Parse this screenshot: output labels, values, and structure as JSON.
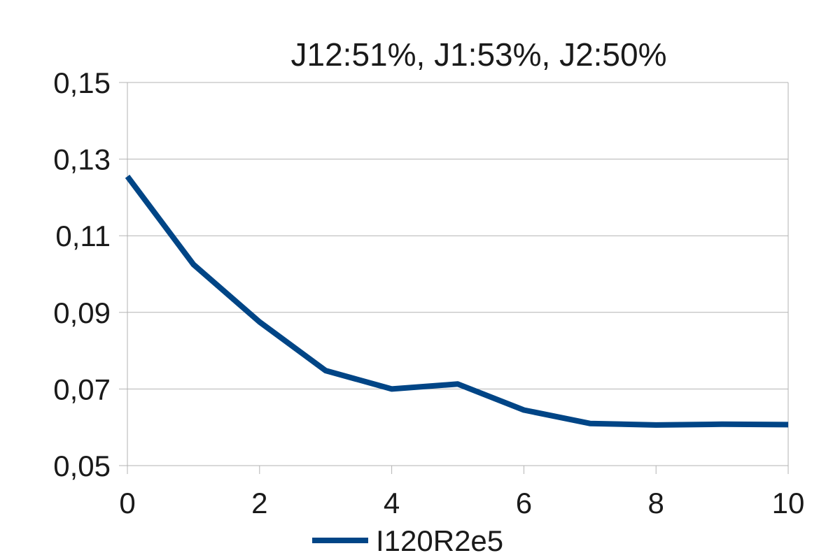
{
  "chart_data": {
    "type": "line",
    "title": "J12:51%, J1:53%, J2:50%",
    "xlabel": "",
    "ylabel": "",
    "x": [
      0,
      1,
      2,
      3,
      4,
      5,
      6,
      7,
      8,
      9,
      10
    ],
    "xlim": [
      0,
      10
    ],
    "ylim": [
      0.05,
      0.15
    ],
    "x_ticks": [
      "0",
      "2",
      "4",
      "6",
      "8",
      "10"
    ],
    "y_ticks": [
      "0,05",
      "0,07",
      "0,09",
      "0,11",
      "0,13",
      "0,15"
    ],
    "grid": true,
    "legend_position": "bottom",
    "series": [
      {
        "name": "I120R2e5",
        "color": "#004586",
        "values": [
          0.1255,
          0.1025,
          0.0875,
          0.0748,
          0.07,
          0.0713,
          0.0645,
          0.061,
          0.0606,
          0.0608,
          0.0607
        ]
      }
    ]
  }
}
